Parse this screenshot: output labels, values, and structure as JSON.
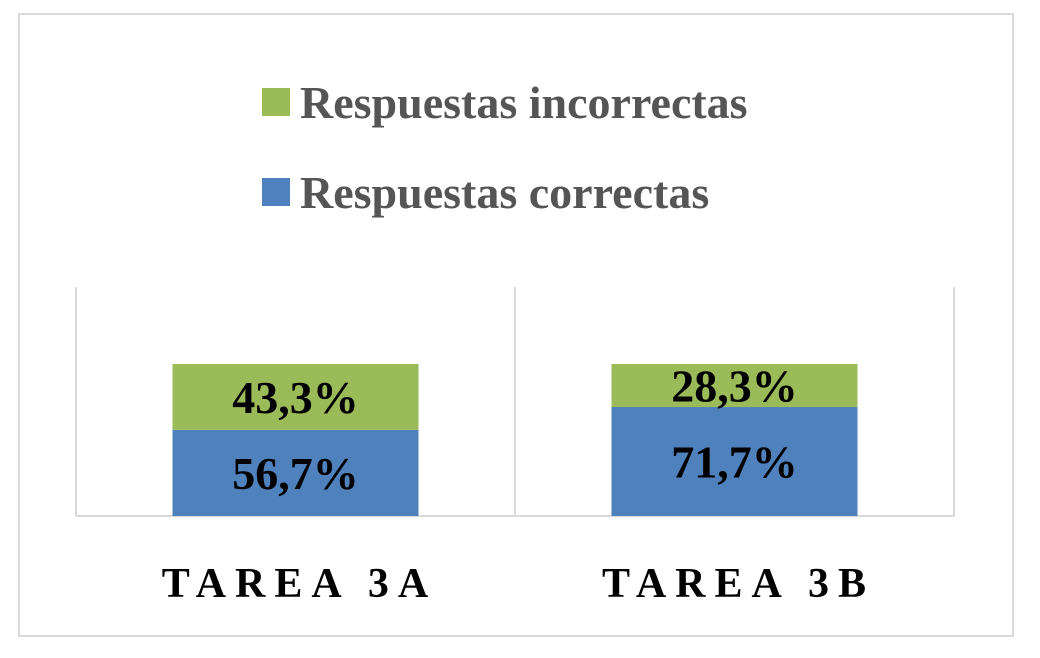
{
  "chart_data": {
    "type": "bar",
    "stacked": true,
    "normalized": true,
    "categories": [
      "TAREA 3A",
      "TAREA 3B"
    ],
    "series": [
      {
        "name": "Respuestas correctas",
        "values": [
          56.7,
          71.7
        ],
        "labels": [
          "56,7%",
          "71,7%"
        ],
        "color": "#4f81bd"
      },
      {
        "name": "Respuestas incorrectas",
        "values": [
          43.3,
          28.3
        ],
        "labels": [
          "43,3%",
          "28,3%"
        ],
        "color": "#9bbb59"
      }
    ],
    "ylim": [
      0,
      100
    ],
    "legend_position": "top",
    "legend_order": [
      "Respuestas incorrectas",
      "Respuestas correctas"
    ],
    "grid": false
  }
}
